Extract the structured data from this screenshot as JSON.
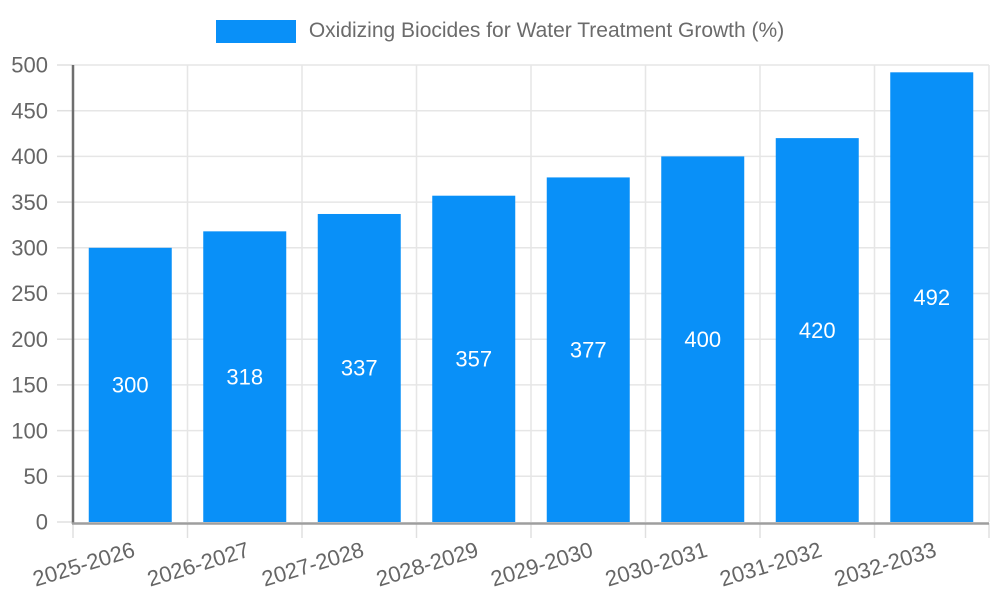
{
  "chart_data": {
    "type": "bar",
    "title": "",
    "legend": {
      "position": "top-center",
      "label": "Oxidizing Biocides for Water Treatment Growth (%)"
    },
    "categories": [
      "2025-2026",
      "2026-2027",
      "2027-2028",
      "2028-2029",
      "2029-2030",
      "2030-2031",
      "2031-2032",
      "2032-2033"
    ],
    "series": [
      {
        "name": "Oxidizing Biocides for Water Treatment Growth (%)",
        "values": [
          300,
          318,
          337,
          357,
          377,
          400,
          420,
          492
        ],
        "color": "#0990f8"
      }
    ],
    "data_labels": {
      "visible": true,
      "position": "middle-of-bar",
      "color": "#ffffff"
    },
    "xlabel": "",
    "ylabel": "",
    "ylim": [
      0,
      500
    ],
    "yticks": [
      0,
      50,
      100,
      150,
      200,
      250,
      300,
      350,
      400,
      450,
      500
    ],
    "x_tick_rotation_deg": -17,
    "grid": {
      "horizontal": true,
      "vertical": true,
      "color": "#e6e6e6"
    },
    "axis": {
      "y_line_color": "#6e6e6e",
      "x_line_color": "#9e9e9e",
      "tick_mark_color": "#e0e0e0",
      "label_color": "#666666"
    }
  }
}
